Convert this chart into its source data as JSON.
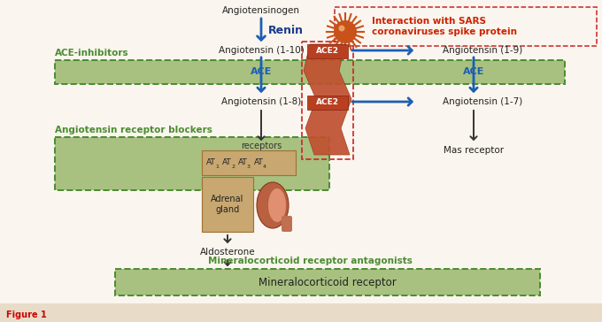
{
  "bg_color": "#faf5ee",
  "blue_arrow": "#1a5fb4",
  "black_arrow": "#333333",
  "ace2_box_color": "#b84020",
  "green_bar_fill": "#a8c080",
  "green_bar_fill_alpha": 0.75,
  "green_dashed_edge": "#4a8c30",
  "at_box_fill": "#c8a870",
  "at_box_edge": "#a07030",
  "vessel_color": "#c05030",
  "vessel_edge": "#9a3818",
  "sars_text_color": "#cc2200",
  "renin_color": "#1a3a8c",
  "ace_label_color": "#1a5fb4",
  "caption_bg": "#e8dcc8",
  "caption_text_color": "#cc0000",
  "angiotensinogen_text": "Angiotensinogen",
  "renin_text": "Renin",
  "ang110_text": "Angiotensin (1-10)",
  "ang19_text": "Angiotensin (1-9)",
  "ang18_text": "Angiotensin (1-8)",
  "ang17_text": "Angiotensin (1-7)",
  "ace_text": "ACE",
  "ace2_text": "ACE2",
  "ace_inhibitors_text": "ACE-inhibitors",
  "arb_text": "Angiotensin receptor blockers",
  "receptors_text": "receptors",
  "adrenal_text": "Adrenal\ngland",
  "aldosterone_text": "Aldosterone",
  "mra_text": "Mineralocorticoid receptor antagonists",
  "mineralocorticoid_text": "Mineralocorticoid receptor",
  "mas_text": "Mas receptor",
  "sars_line1": "Interaction with SARS",
  "sars_line2": "coronaviruses spike protein",
  "figure_caption": "Figure 1"
}
